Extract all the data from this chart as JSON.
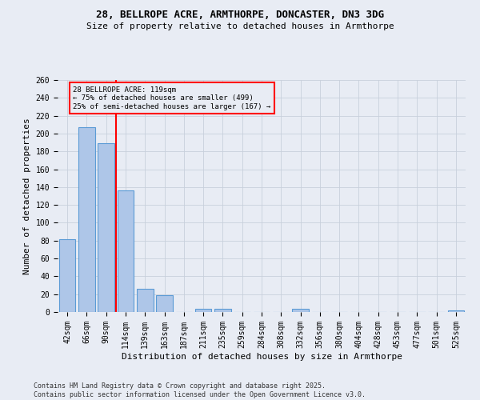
{
  "title": "28, BELLROPE ACRE, ARMTHORPE, DONCASTER, DN3 3DG",
  "subtitle": "Size of property relative to detached houses in Armthorpe",
  "xlabel": "Distribution of detached houses by size in Armthorpe",
  "ylabel": "Number of detached properties",
  "footer_line1": "Contains HM Land Registry data © Crown copyright and database right 2025.",
  "footer_line2": "Contains public sector information licensed under the Open Government Licence v3.0.",
  "categories": [
    "42sqm",
    "66sqm",
    "90sqm",
    "114sqm",
    "139sqm",
    "163sqm",
    "187sqm",
    "211sqm",
    "235sqm",
    "259sqm",
    "284sqm",
    "308sqm",
    "332sqm",
    "356sqm",
    "380sqm",
    "404sqm",
    "428sqm",
    "453sqm",
    "477sqm",
    "501sqm",
    "525sqm"
  ],
  "values": [
    82,
    207,
    189,
    136,
    26,
    19,
    0,
    4,
    4,
    0,
    0,
    0,
    4,
    0,
    0,
    0,
    0,
    0,
    0,
    0,
    2
  ],
  "bar_color": "#aec6e8",
  "bar_edge_color": "#5b9bd5",
  "grid_color": "#c8d0dc",
  "vline_color": "red",
  "vline_x_index": 3,
  "annotation_text": "28 BELLROPE ACRE: 119sqm\n← 75% of detached houses are smaller (499)\n25% of semi-detached houses are larger (167) →",
  "annotation_box_color": "red",
  "ylim": [
    0,
    260
  ],
  "yticks": [
    0,
    20,
    40,
    60,
    80,
    100,
    120,
    140,
    160,
    180,
    200,
    220,
    240,
    260
  ],
  "bg_color": "#e8ecf4",
  "plot_bg_color": "#e8ecf4",
  "title_fontsize": 9,
  "subtitle_fontsize": 8,
  "tick_fontsize": 7,
  "ylabel_fontsize": 8,
  "xlabel_fontsize": 8,
  "footer_fontsize": 6
}
